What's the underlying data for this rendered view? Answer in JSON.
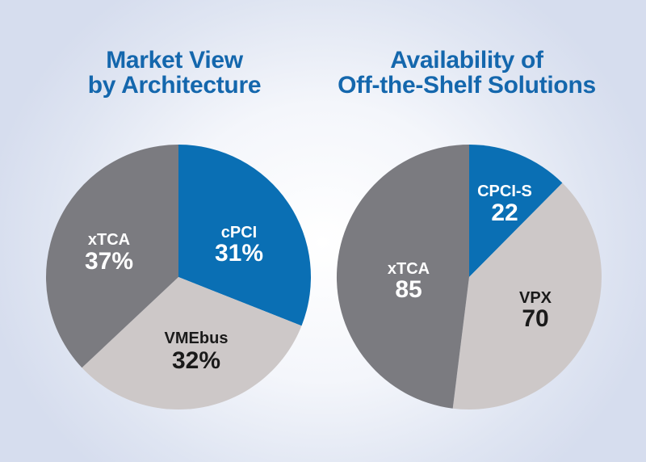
{
  "colors": {
    "title": "#1467ad",
    "blue": "#0a6fb4",
    "dark_gray": "#7b7b80",
    "light_gray": "#cdc8c8",
    "label_light": "#ffffff",
    "label_dark": "#1a1a1a"
  },
  "left": {
    "title_line1": "Market View",
    "title_line2": "by Architecture",
    "slices": [
      {
        "name": "cPCI",
        "value_label": "31%"
      },
      {
        "name": "VMEbus",
        "value_label": "32%"
      },
      {
        "name": "xTCA",
        "value_label": "37%"
      }
    ]
  },
  "right": {
    "title_line1": "Availability of",
    "title_line2": "Off-the-Shelf Solutions",
    "slices": [
      {
        "name": "CPCI-S",
        "value_label": "22"
      },
      {
        "name": "VPX",
        "value_label": "70"
      },
      {
        "name": "xTCA",
        "value_label": "85"
      }
    ]
  },
  "chart_data": [
    {
      "type": "pie",
      "title": "Market View by Architecture",
      "categories": [
        "cPCI",
        "VMEbus",
        "xTCA"
      ],
      "values": [
        31,
        32,
        37
      ],
      "unit": "%",
      "colors": [
        "#0a6fb4",
        "#cdc8c8",
        "#7b7b80"
      ],
      "start_angle": "12 o'clock, clockwise"
    },
    {
      "type": "pie",
      "title": "Availability of Off-the-Shelf Solutions",
      "categories": [
        "CPCI-S",
        "VPX",
        "xTCA"
      ],
      "values": [
        22,
        70,
        85
      ],
      "unit": "count",
      "colors": [
        "#0a6fb4",
        "#cdc8c8",
        "#7b7b80"
      ],
      "start_angle": "12 o'clock, clockwise"
    }
  ]
}
